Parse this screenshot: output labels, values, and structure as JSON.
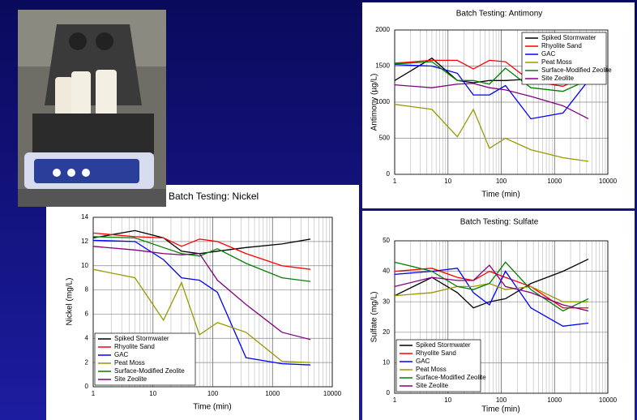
{
  "chart_data": [
    {
      "type": "line",
      "title": "Batch Testing: Antimony",
      "x_label": "Time (min)",
      "y_label": "Antimony (µg/L)",
      "x": [
        1,
        5,
        15,
        30,
        60,
        120,
        360,
        1440,
        4320
      ],
      "xlim": [
        1,
        10000
      ],
      "xticks": [
        1,
        10,
        100,
        1000,
        10000
      ],
      "xlog": true,
      "ylim": [
        0,
        2000
      ],
      "yticks": [
        0,
        500,
        1000,
        1500,
        2000
      ],
      "grid": true,
      "legend": "upper right",
      "series": [
        {
          "name": "Spiked Stormwater",
          "color": "#000000",
          "values": [
            1300,
            1610,
            1300,
            1270,
            1300,
            1300,
            1320,
            1320,
            1340
          ]
        },
        {
          "name": "Rhyolite Sand",
          "color": "#ff0000",
          "values": [
            1540,
            1580,
            1580,
            1460,
            1580,
            1560,
            1290,
            1220,
            1380
          ]
        },
        {
          "name": "GAC",
          "color": "#0000ff",
          "values": [
            1520,
            1500,
            1400,
            1100,
            1100,
            1230,
            770,
            850,
            1300
          ]
        },
        {
          "name": "Peat Moss",
          "color": "#999900",
          "values": [
            970,
            900,
            520,
            900,
            360,
            500,
            340,
            230,
            180
          ]
        },
        {
          "name": "Surface-Modified Zeolite",
          "color": "#008000",
          "values": [
            1530,
            1560,
            1300,
            1300,
            1250,
            1470,
            1200,
            1150,
            1310
          ]
        },
        {
          "name": "Site Zeolite",
          "color": "#800080",
          "values": [
            1240,
            1200,
            1250,
            1260,
            1200,
            1170,
            1080,
            950,
            770
          ]
        }
      ]
    },
    {
      "type": "line",
      "title": "Batch Testing: Nickel",
      "x_label": "Time (min)",
      "y_label": "Nickel (mg/L)",
      "x": [
        1,
        5,
        15,
        30,
        60,
        120,
        360,
        1440,
        4320
      ],
      "xlim": [
        1,
        10000
      ],
      "xticks": [
        1,
        10,
        100,
        1000,
        10000
      ],
      "xlog": true,
      "ylim": [
        0,
        14
      ],
      "yticks": [
        0,
        2,
        4,
        6,
        8,
        10,
        12,
        14
      ],
      "grid": true,
      "legend": "lower left",
      "series": [
        {
          "name": "Spiked Stormwater",
          "color": "#000000",
          "values": [
            12.3,
            12.9,
            12.3,
            11.2,
            11.0,
            11.2,
            11.5,
            11.8,
            12.2
          ]
        },
        {
          "name": "Rhyolite Sand",
          "color": "#ff0000",
          "values": [
            12.7,
            12.4,
            12.3,
            11.6,
            12.2,
            12.0,
            11.0,
            10.0,
            9.7
          ]
        },
        {
          "name": "GAC",
          "color": "#0000ff",
          "values": [
            12.1,
            12.0,
            10.5,
            9.0,
            8.8,
            7.8,
            2.4,
            1.9,
            1.8
          ]
        },
        {
          "name": "Peat Moss",
          "color": "#999900",
          "values": [
            9.7,
            9.0,
            5.5,
            8.6,
            4.3,
            5.3,
            4.5,
            2.1,
            2.0
          ]
        },
        {
          "name": "Surface-Modified Zeolite",
          "color": "#008000",
          "values": [
            12.4,
            12.3,
            11.5,
            11.0,
            10.8,
            11.4,
            10.2,
            9.0,
            8.7
          ]
        },
        {
          "name": "Site Zeolite",
          "color": "#800080",
          "values": [
            11.6,
            11.3,
            11.0,
            10.9,
            11.0,
            8.8,
            6.8,
            4.5,
            3.9
          ]
        }
      ]
    },
    {
      "type": "line",
      "title": "Batch Testing: Sulfate",
      "x_label": "Time (min)",
      "y_label": "Sulfate (mg/L)",
      "x": [
        1,
        5,
        15,
        30,
        60,
        120,
        360,
        1440,
        4320
      ],
      "xlim": [
        1,
        10000
      ],
      "xticks": [
        1,
        10,
        100,
        1000,
        10000
      ],
      "xlog": true,
      "ylim": [
        0,
        50
      ],
      "yticks": [
        0,
        10,
        20,
        30,
        40,
        50
      ],
      "grid": true,
      "legend": "lower left",
      "series": [
        {
          "name": "Spiked Stormwater",
          "color": "#000000",
          "values": [
            32,
            38,
            33,
            28,
            30,
            31,
            36,
            40,
            44
          ]
        },
        {
          "name": "Rhyolite Sand",
          "color": "#ff0000",
          "values": [
            40,
            41,
            38,
            37,
            40,
            38,
            35,
            28,
            28
          ]
        },
        {
          "name": "GAC",
          "color": "#0000ff",
          "values": [
            39,
            40,
            41,
            33,
            29,
            40,
            28,
            22,
            23
          ]
        },
        {
          "name": "Peat Moss",
          "color": "#999900",
          "values": [
            32,
            33,
            35,
            35,
            36,
            34,
            35,
            30,
            30
          ]
        },
        {
          "name": "Surface-Modified Zeolite",
          "color": "#008000",
          "values": [
            43,
            40,
            35,
            34,
            36,
            43,
            34,
            27,
            31
          ]
        },
        {
          "name": "Site Zeolite",
          "color": "#800080",
          "values": [
            35,
            38,
            37,
            37,
            42,
            35,
            33,
            29,
            27
          ]
        }
      ]
    }
  ]
}
